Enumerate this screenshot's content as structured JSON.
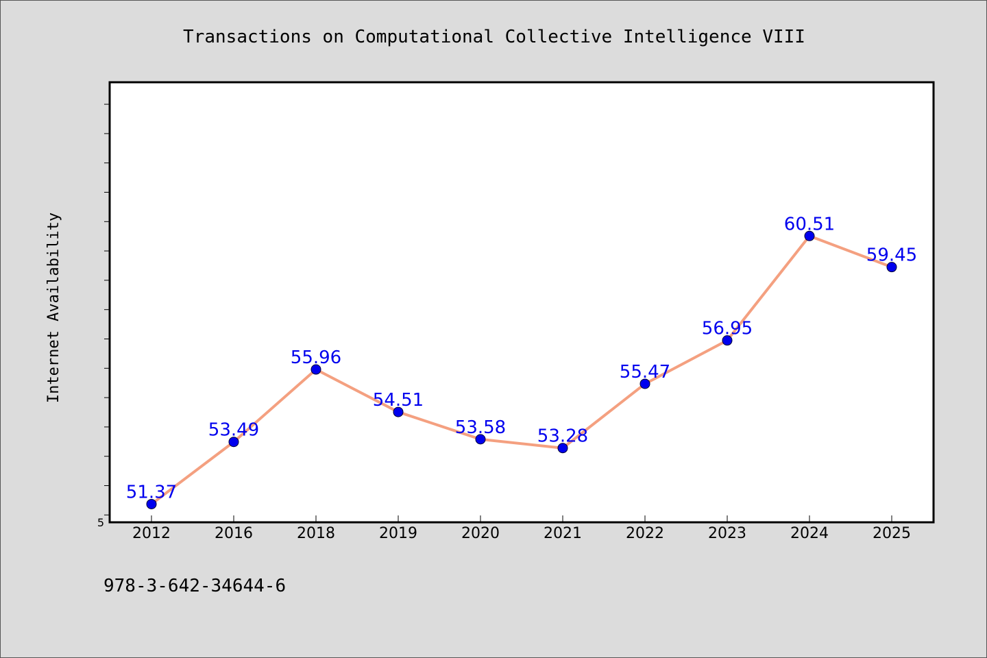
{
  "figure": {
    "footer_text": "978-3-642-34644-6"
  },
  "colors": {
    "background": "#dcdcdc",
    "plot_background": "#ffffff",
    "line": "#f4a080",
    "marker": "#0000ee",
    "label": "#0000ee",
    "axis": "#000000"
  },
  "chart_data": {
    "type": "line",
    "title": "Transactions on Computational Collective Intelligence VIII",
    "xlabel": "",
    "ylabel": "Internet Availability",
    "categories": [
      "2012",
      "2016",
      "2018",
      "2019",
      "2020",
      "2021",
      "2022",
      "2023",
      "2024",
      "2025"
    ],
    "series": [
      {
        "values": [
          51.37,
          53.49,
          55.96,
          54.51,
          53.58,
          53.28,
          55.47,
          56.95,
          60.51,
          59.45
        ],
        "labels": [
          "51.37",
          "53.49",
          "55.96",
          "54.51",
          "53.58",
          "53.28",
          "55.47",
          "56.95",
          "60.51",
          "59.45"
        ]
      }
    ],
    "ylim": [
      50.75,
      65.75
    ],
    "y_tick_labels": [
      "5"
    ],
    "y_minor_tick_step": 1,
    "grid": false,
    "legend": "none"
  }
}
